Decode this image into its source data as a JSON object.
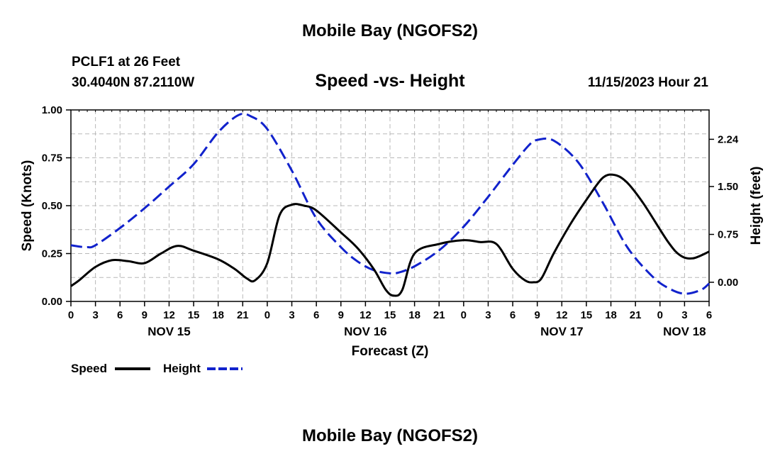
{
  "header": {
    "title": "Mobile Bay (NGOFS2)",
    "station": "PCLF1 at 26 Feet",
    "coords": "30.4040N  87.2110W",
    "subtitle": "Speed -vs- Height",
    "datetime": "11/15/2023 Hour 21"
  },
  "footer": {
    "title": "Mobile Bay (NGOFS2)"
  },
  "chart_data": {
    "type": "line",
    "title": "Speed -vs- Height",
    "xlabel": "Forecast (Z)",
    "ylabel": "Speed (Knots)",
    "y2label": "Height (feet)",
    "x_unit": "hours since Nov 15 00Z",
    "xlim": [
      0,
      78
    ],
    "ylim": [
      0,
      1
    ],
    "y2lim": [
      -0.3,
      2.7
    ],
    "grid": true,
    "x_ticks": [
      {
        "x": 0,
        "label": "0"
      },
      {
        "x": 3,
        "label": "3"
      },
      {
        "x": 6,
        "label": "6"
      },
      {
        "x": 9,
        "label": "9"
      },
      {
        "x": 12,
        "label": "12"
      },
      {
        "x": 15,
        "label": "15"
      },
      {
        "x": 18,
        "label": "18"
      },
      {
        "x": 21,
        "label": "21"
      },
      {
        "x": 24,
        "label": "0"
      },
      {
        "x": 27,
        "label": "3"
      },
      {
        "x": 30,
        "label": "6"
      },
      {
        "x": 33,
        "label": "9"
      },
      {
        "x": 36,
        "label": "12"
      },
      {
        "x": 39,
        "label": "15"
      },
      {
        "x": 42,
        "label": "18"
      },
      {
        "x": 45,
        "label": "21"
      },
      {
        "x": 48,
        "label": "0"
      },
      {
        "x": 51,
        "label": "3"
      },
      {
        "x": 54,
        "label": "6"
      },
      {
        "x": 57,
        "label": "9"
      },
      {
        "x": 60,
        "label": "12"
      },
      {
        "x": 63,
        "label": "15"
      },
      {
        "x": 66,
        "label": "18"
      },
      {
        "x": 69,
        "label": "21"
      },
      {
        "x": 72,
        "label": "0"
      },
      {
        "x": 75,
        "label": "3"
      },
      {
        "x": 78,
        "label": "6"
      }
    ],
    "day_labels": [
      {
        "x": 12,
        "label": "NOV 15"
      },
      {
        "x": 36,
        "label": "NOV 16"
      },
      {
        "x": 60,
        "label": "NOV 17"
      },
      {
        "x": 75,
        "label": "NOV 18"
      }
    ],
    "y_ticks": [
      0.0,
      0.25,
      0.5,
      0.75,
      1.0
    ],
    "y_tick_labels": [
      "0.00",
      "0.25",
      "0.50",
      "0.75",
      "1.00"
    ],
    "y2_ticks": [
      0.0,
      0.75,
      1.5,
      2.24
    ],
    "y2_tick_labels": [
      "0.00",
      "0.75",
      "1.50",
      "2.24"
    ],
    "legend": {
      "position": "bottom-left",
      "speed_label": "Speed",
      "height_label": "Height"
    },
    "series": [
      {
        "name": "Speed",
        "axis": "left",
        "color": "#000000",
        "dash": "solid",
        "x": [
          0,
          1,
          3,
          5,
          7,
          9,
          11,
          13,
          15,
          18,
          20,
          21.5,
          22.5,
          24,
          25.5,
          27,
          28.5,
          30,
          33,
          35,
          37,
          38.5,
          39.5,
          40.5,
          42,
          45,
          48,
          50,
          52,
          54,
          55.5,
          56.5,
          57.5,
          59,
          61,
          63,
          65,
          66.5,
          68,
          70,
          73,
          74.5,
          76,
          78
        ],
        "values": [
          0.08,
          0.11,
          0.18,
          0.215,
          0.21,
          0.2,
          0.25,
          0.29,
          0.265,
          0.22,
          0.17,
          0.12,
          0.11,
          0.2,
          0.45,
          0.505,
          0.5,
          0.475,
          0.36,
          0.28,
          0.17,
          0.06,
          0.03,
          0.06,
          0.25,
          0.3,
          0.32,
          0.31,
          0.3,
          0.17,
          0.11,
          0.1,
          0.12,
          0.25,
          0.4,
          0.53,
          0.645,
          0.66,
          0.62,
          0.51,
          0.31,
          0.24,
          0.225,
          0.26
        ]
      },
      {
        "name": "Height",
        "axis": "right",
        "color": "#1122cc",
        "dash": "dashed",
        "x": [
          0,
          1,
          2,
          3,
          6,
          9,
          12,
          15,
          18,
          20.5,
          22,
          24,
          27,
          30,
          33,
          35,
          37,
          39,
          40,
          42,
          45,
          48,
          51,
          54,
          56,
          57,
          59,
          62,
          65,
          68,
          71,
          73,
          75,
          77,
          78
        ],
        "values": [
          0.58,
          0.56,
          0.55,
          0.58,
          0.85,
          1.16,
          1.5,
          1.85,
          2.35,
          2.62,
          2.6,
          2.4,
          1.75,
          1.0,
          0.55,
          0.33,
          0.19,
          0.14,
          0.15,
          0.25,
          0.5,
          0.87,
          1.34,
          1.84,
          2.15,
          2.23,
          2.22,
          1.88,
          1.25,
          0.55,
          0.1,
          -0.09,
          -0.18,
          -0.12,
          -0.02
        ]
      }
    ]
  }
}
